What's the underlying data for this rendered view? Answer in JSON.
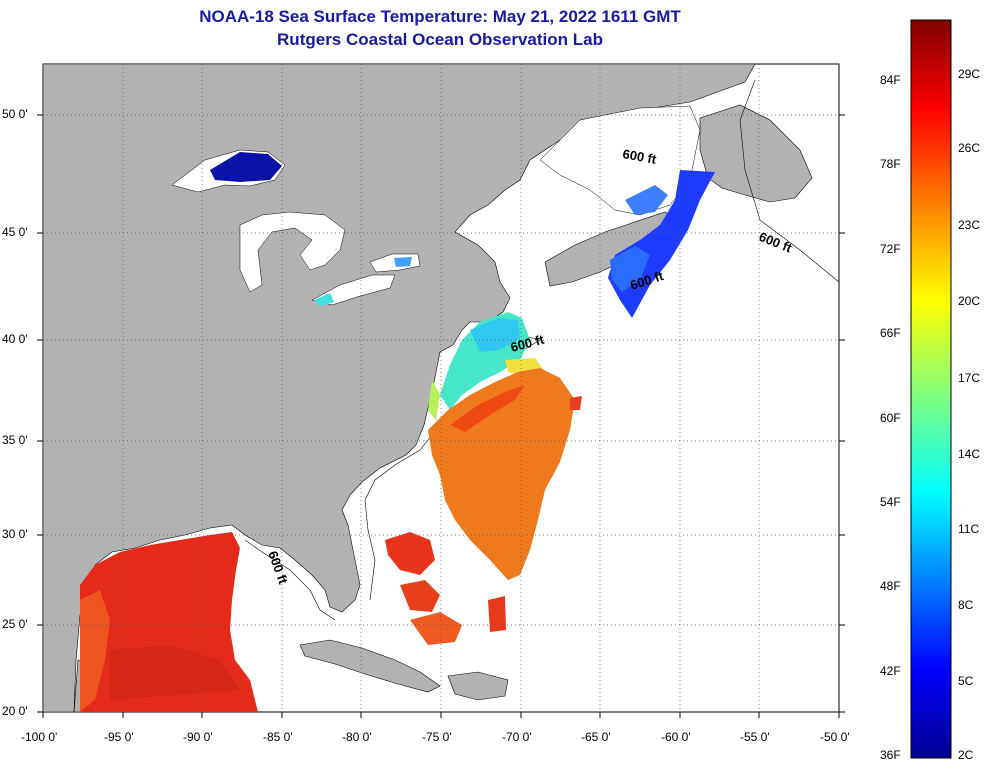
{
  "title": "NOAA-18 Sea Surface Temperature:  May 21, 2022 1611 GMT",
  "subtitle": "Rutgers Coastal Ocean Observation Lab",
  "map": {
    "lon_range": [
      -100,
      -50
    ],
    "lat_range": [
      20,
      52.5
    ],
    "lon_ticks": [
      "-100 0'",
      "-95 0'",
      "-90 0'",
      "-85 0'",
      "-80 0'",
      "-75 0'",
      "-70 0'",
      "-65 0'",
      "-60 0'",
      "-55 0'",
      "-50 0'"
    ],
    "lat_ticks": [
      "20 0'",
      "25 0'",
      "30 0'",
      "35 0'",
      "40 0'",
      "45 0'",
      "50 0'"
    ],
    "grid": "dotted",
    "isobath_labels": [
      "600 ft",
      "600 ft",
      "600 ft",
      "600 ft",
      "600 ft"
    ],
    "colors": {
      "land": "#b2b2b2",
      "ocean_no_data": "#ffffff"
    }
  },
  "colorbar": {
    "fahrenheit_labels": [
      "84F",
      "78F",
      "72F",
      "66F",
      "60F",
      "54F",
      "48F",
      "42F",
      "36F"
    ],
    "celsius_labels": [
      "29C",
      "26C",
      "23C",
      "20C",
      "17C",
      "14C",
      "11C",
      "8C",
      "5C",
      "2C"
    ],
    "colormap": "jet",
    "range_celsius": [
      2,
      31
    ]
  }
}
